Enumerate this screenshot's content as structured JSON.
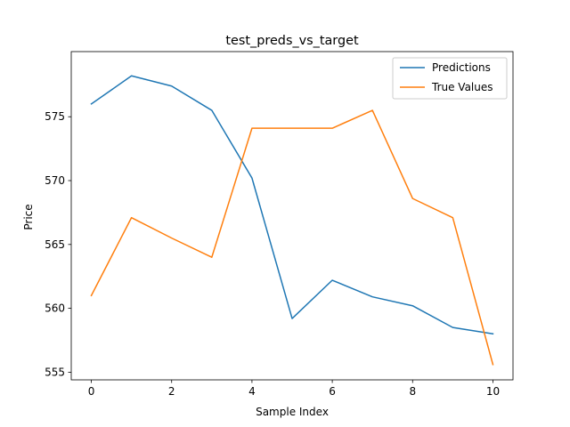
{
  "chart_data": {
    "type": "line",
    "title": "test_preds_vs_target",
    "xlabel": "Sample Index",
    "ylabel": "Price",
    "x": [
      0,
      1,
      2,
      3,
      4,
      5,
      6,
      7,
      8,
      9,
      10
    ],
    "xlim": [
      -0.5,
      10.5
    ],
    "ylim": [
      554.4,
      580.1
    ],
    "xticks": [
      0,
      2,
      4,
      6,
      8,
      10
    ],
    "yticks": [
      555,
      560,
      565,
      570,
      575
    ],
    "grid": false,
    "legend_position": "top-right",
    "series": [
      {
        "name": "Predictions",
        "color": "#1f77b4",
        "values": [
          576.0,
          578.2,
          577.4,
          575.5,
          570.2,
          559.2,
          562.2,
          560.9,
          560.2,
          558.5,
          558.0
        ]
      },
      {
        "name": "True Values",
        "color": "#ff7f0e",
        "values": [
          561.0,
          567.1,
          565.5,
          564.0,
          574.1,
          574.1,
          574.1,
          575.5,
          568.6,
          567.1,
          555.6
        ]
      }
    ]
  }
}
